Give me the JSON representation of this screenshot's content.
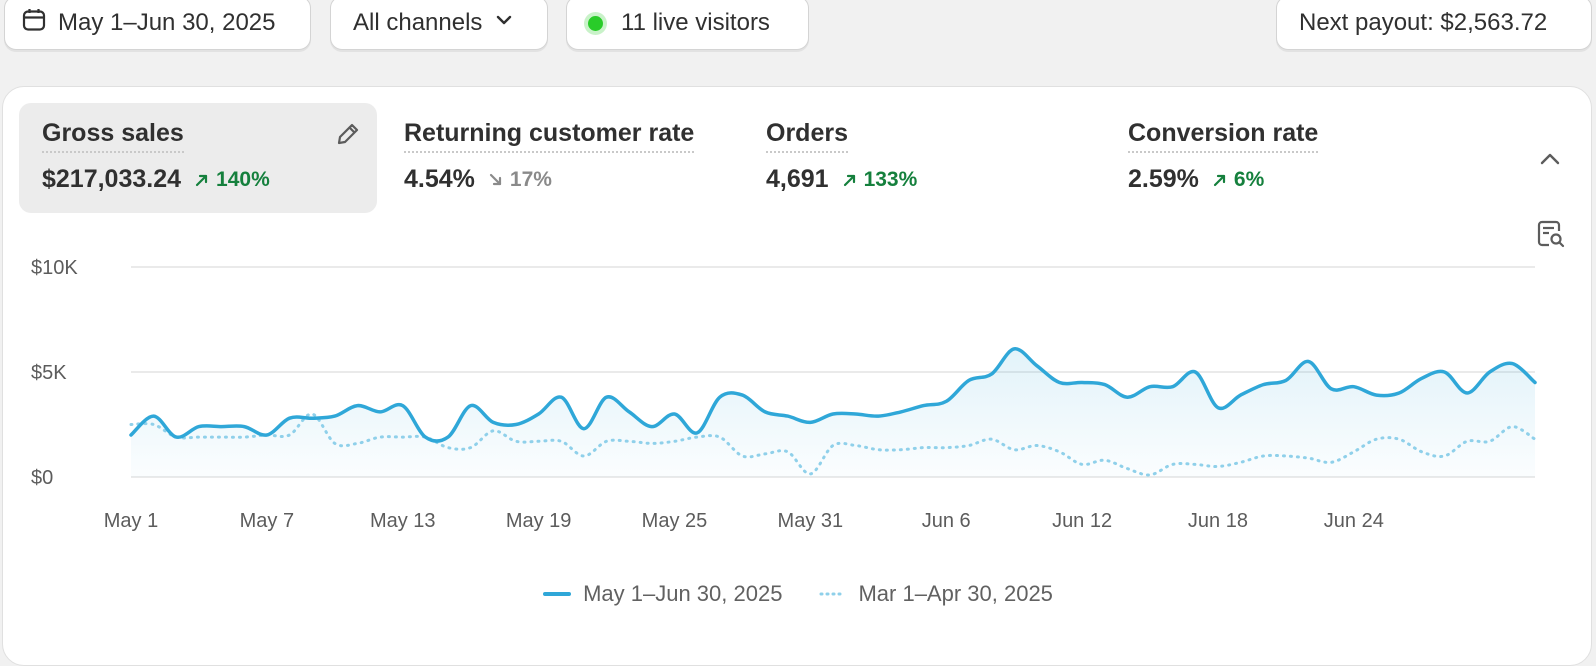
{
  "topbar": {
    "date_range": "May 1–Jun 30, 2025",
    "channel": "All channels",
    "live_visitors": "11 live visitors",
    "payout": "Next payout: $2,563.72"
  },
  "metrics": [
    {
      "label": "Gross sales",
      "value": "$217,033.24",
      "change": "140%",
      "direction": "up"
    },
    {
      "label": "Returning customer rate",
      "value": "4.54%",
      "change": "17%",
      "direction": "down"
    },
    {
      "label": "Orders",
      "value": "4,691",
      "change": "133%",
      "direction": "up"
    },
    {
      "label": "Conversion rate",
      "value": "2.59%",
      "change": "6%",
      "direction": "up"
    }
  ],
  "colors": {
    "current": "#2fa7d8",
    "previous": "#8fd0ea",
    "up": "#15803d",
    "down": "#8a8a8a"
  },
  "chart_data": {
    "type": "line",
    "y_ticks": [
      "$10K",
      "$5K",
      "$0"
    ],
    "x_ticks": [
      "May 1",
      "May 7",
      "May 13",
      "May 19",
      "May 25",
      "May 31",
      "Jun 6",
      "Jun 12",
      "Jun 18",
      "Jun 24"
    ],
    "ylim": [
      0,
      10000
    ],
    "grid": true,
    "legend_position": "bottom",
    "series": [
      {
        "name": "May 1–Jun 30, 2025",
        "style": "solid",
        "values": [
          2000,
          2900,
          1900,
          2400,
          2400,
          2400,
          2000,
          2800,
          2800,
          2900,
          3400,
          3100,
          3400,
          1900,
          1900,
          3400,
          2600,
          2500,
          3000,
          3800,
          2300,
          3800,
          3100,
          2400,
          3000,
          2100,
          3800,
          3900,
          3100,
          2900,
          2600,
          3000,
          3000,
          2900,
          3100,
          3400,
          3600,
          4600,
          4900,
          6100,
          5300,
          4500,
          4500,
          4400,
          3800,
          4300,
          4300,
          5000,
          3300,
          3900,
          4400,
          4600,
          5500,
          4200,
          4300,
          3900,
          4000,
          4700,
          5000,
          4000,
          5000,
          5400,
          4500
        ]
      },
      {
        "name": "Mar 1–Apr 30, 2025",
        "style": "dotted",
        "values": [
          2500,
          2500,
          1900,
          1900,
          1900,
          1900,
          2000,
          2000,
          3000,
          1600,
          1600,
          1900,
          1900,
          1900,
          1400,
          1400,
          2200,
          1700,
          1700,
          1700,
          1000,
          1700,
          1700,
          1600,
          1700,
          1900,
          1900,
          1000,
          1100,
          1200,
          150,
          1500,
          1500,
          1300,
          1300,
          1400,
          1400,
          1500,
          1800,
          1300,
          1500,
          1200,
          600,
          800,
          400,
          100,
          600,
          600,
          500,
          700,
          1000,
          1000,
          900,
          700,
          1200,
          1800,
          1800,
          1200,
          1000,
          1700,
          1700,
          2400,
          1800
        ]
      }
    ]
  }
}
